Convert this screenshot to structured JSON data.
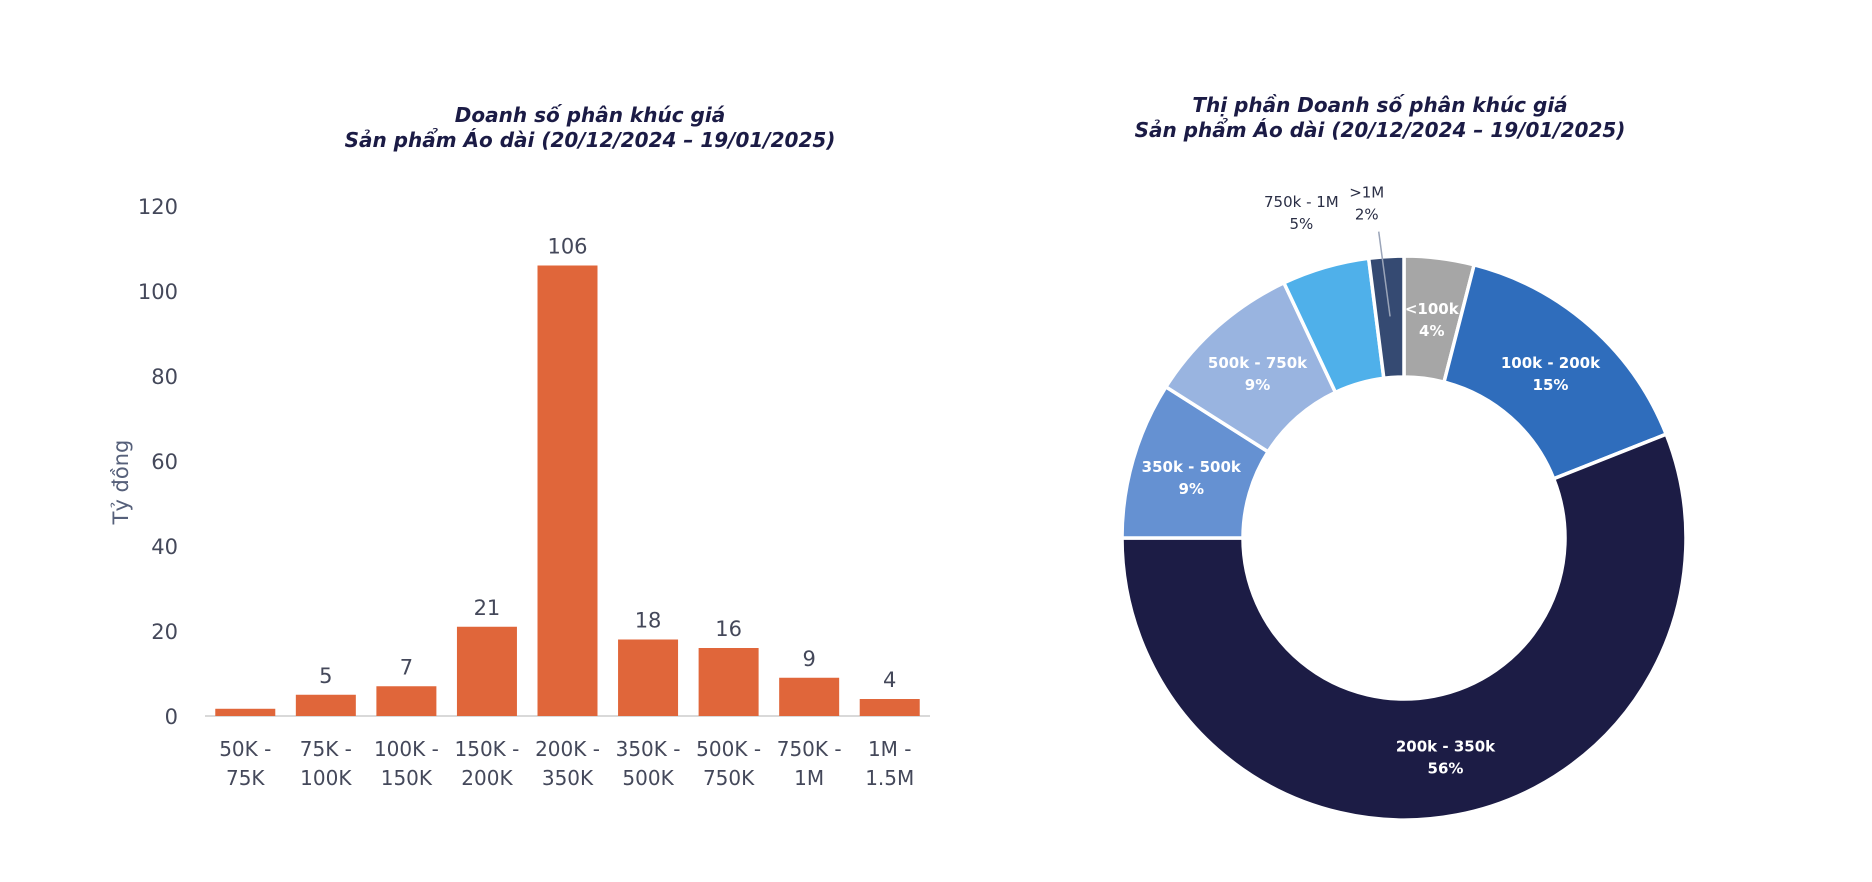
{
  "bar_chart": {
    "title_line1": "Doanh số phân khúc giá",
    "title_line2": "Sản phẩm Áo dài (20/12/2024 – 19/01/2025)",
    "ylabel": "Tỷ đồng"
  },
  "donut_chart": {
    "title_line1": "Thị phần Doanh số phân khúc giá",
    "title_line2": "Sản phẩm Áo dài (20/12/2024 – 19/01/2025)"
  },
  "chart_data": [
    {
      "type": "bar",
      "title": "Doanh số phân khúc giá\nSản phẩm Áo dài (20/12/2024 – 19/01/2025)",
      "ylabel": "Tỷ đồng",
      "xlabel": "",
      "ylim": [
        0,
        120
      ],
      "yticks": [
        0,
        20,
        40,
        60,
        80,
        100,
        120
      ],
      "grid": false,
      "bar_color": "#e0663a",
      "categories": [
        [
          "50K -",
          "75K"
        ],
        [
          "75K -",
          "100K"
        ],
        [
          "100K -",
          "150K"
        ],
        [
          "150K -",
          "200K"
        ],
        [
          "200K -",
          "350K"
        ],
        [
          "350K -",
          "500K"
        ],
        [
          "500K -",
          "750K"
        ],
        [
          "750K -",
          "1M"
        ],
        [
          "1M -",
          "1.5M"
        ]
      ],
      "values": [
        1.7,
        5,
        7,
        21,
        106,
        18,
        16,
        9,
        4
      ],
      "data_labels": [
        "",
        "5",
        "7",
        "21",
        "106",
        "18",
        "16",
        "9",
        "4"
      ]
    },
    {
      "type": "pie",
      "style": "donut",
      "title": "Thị phần Doanh số phân khúc giá\nSản phẩm Áo dài (20/12/2024 – 19/01/2025)",
      "slices": [
        {
          "name": "<100k",
          "pct_label": "4%",
          "value": 4,
          "color": "#a6a6a6",
          "label": "inside"
        },
        {
          "name": "100k - 200k",
          "pct_label": "15%",
          "value": 15,
          "color": "#2f6dbc",
          "label": "inside"
        },
        {
          "name": "200k - 350k",
          "pct_label": "56%",
          "value": 56,
          "color": "#1c1c45",
          "label": "inside"
        },
        {
          "name": "350k - 500k",
          "pct_label": "9%",
          "value": 9,
          "color": "#6591d2",
          "label": "inside"
        },
        {
          "name": "500k - 750k",
          "pct_label": "9%",
          "value": 9,
          "color": "#99b4e0",
          "label": "inside"
        },
        {
          "name": "750k - 1M",
          "pct_label": "5%",
          "value": 5,
          "color": "#4fb0ea",
          "label": "outside"
        },
        {
          "name": ">1M",
          "pct_label": "2%",
          "value": 2,
          "color": "#354a72",
          "label": "outside-leader"
        }
      ]
    }
  ]
}
